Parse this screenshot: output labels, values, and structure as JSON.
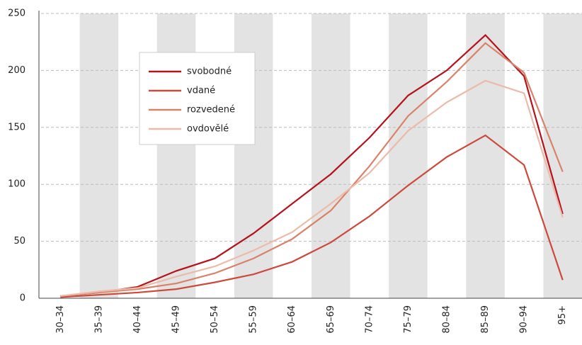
{
  "chart_data": {
    "type": "line",
    "categories": [
      "30–34",
      "35–39",
      "40–44",
      "45–49",
      "50–54",
      "55–59",
      "60–64",
      "65–69",
      "70–74",
      "75–79",
      "80–84",
      "85–89",
      "90–94",
      "95+"
    ],
    "series": [
      {
        "name": "svobodné",
        "color": "#b5121b",
        "values": [
          2,
          5,
          10,
          24,
          35,
          57,
          83,
          109,
          141,
          178,
          200,
          231,
          195,
          74
        ]
      },
      {
        "name": "vdané",
        "color": "#cc4a3c",
        "values": [
          1,
          3,
          5,
          8,
          14,
          21,
          32,
          49,
          72,
          99,
          124,
          143,
          117,
          16
        ]
      },
      {
        "name": "rozvedené",
        "color": "#d9826a",
        "values": [
          2,
          5,
          8,
          13,
          22,
          35,
          52,
          77,
          116,
          160,
          190,
          224,
          198,
          111
        ]
      },
      {
        "name": "ovdovělé",
        "color": "#ecbaa8",
        "values": [
          2,
          6,
          9,
          19,
          28,
          42,
          58,
          83,
          110,
          147,
          172,
          191,
          180,
          71
        ]
      }
    ],
    "ylim": [
      0,
      250
    ],
    "yticks": [
      0,
      50,
      100,
      150,
      200,
      250
    ],
    "grid": true,
    "legend": "upper left"
  }
}
